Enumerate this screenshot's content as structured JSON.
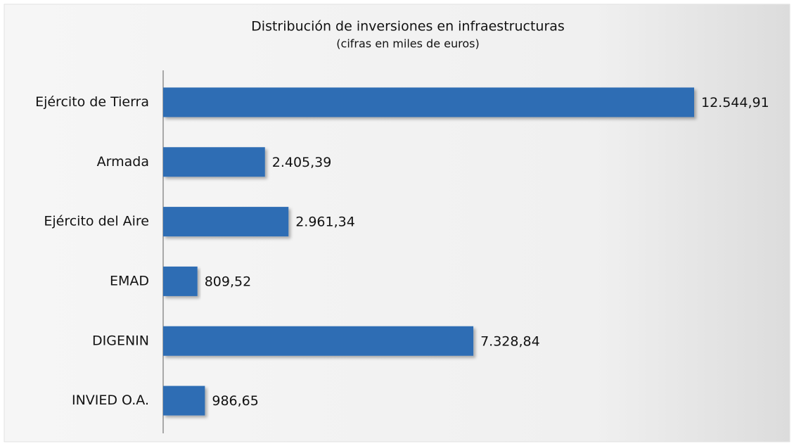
{
  "chart_data": {
    "type": "bar",
    "orientation": "horizontal",
    "title": "Distribución de inversiones en infraestructuras",
    "subtitle": "(cifras en miles de euros)",
    "categories": [
      "Ejército de Tierra",
      "Armada",
      "Ejército del Aire",
      "EMAD",
      "DIGENIN",
      "INVIED O.A."
    ],
    "values": [
      12544.91,
      2405.39,
      2961.34,
      809.52,
      7328.84,
      986.65
    ],
    "value_labels": [
      "12.544,91",
      "2.405,39",
      "2.961,34",
      "809,52",
      "7.328,84",
      "986,65"
    ],
    "color": "#2f6db4"
  }
}
